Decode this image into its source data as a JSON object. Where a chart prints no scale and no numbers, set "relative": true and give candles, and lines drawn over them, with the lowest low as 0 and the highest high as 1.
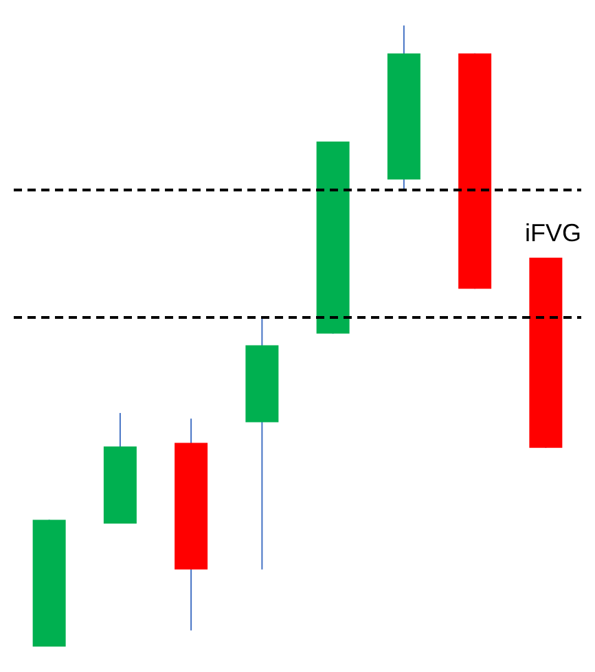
{
  "chart_data": {
    "type": "candlestick",
    "relative": true,
    "categories": [
      null,
      null,
      null,
      null,
      null,
      null,
      null,
      null
    ],
    "ohlc": [
      [
        0,
        0.204,
        0,
        0.204
      ],
      [
        0.198,
        0.376,
        0.198,
        0.322
      ],
      [
        0.328,
        0.367,
        0.026,
        0.124
      ],
      [
        0.361,
        0.53,
        0.124,
        0.485
      ],
      [
        0.504,
        0.813,
        0.504,
        0.813
      ],
      [
        0.752,
        1,
        0.734,
        0.955
      ],
      [
        0.955,
        0.955,
        0.576,
        0.576
      ],
      [
        0.626,
        0.626,
        0.32,
        0.32
      ]
    ],
    "colors": [
      "#00b050",
      "#00b050",
      "#ff0000",
      "#00b050",
      "#00b050",
      "#00b050",
      "#ff0000",
      "#ff0000"
    ],
    "ref_lines": [
      {
        "axis": "y",
        "value": 0.735,
        "color": "#000000",
        "line_style": "dashed"
      },
      {
        "axis": "y",
        "value": 0.53,
        "color": "#000000",
        "line_style": "dashed"
      }
    ],
    "annotations": [
      "iFVG"
    ]
  }
}
